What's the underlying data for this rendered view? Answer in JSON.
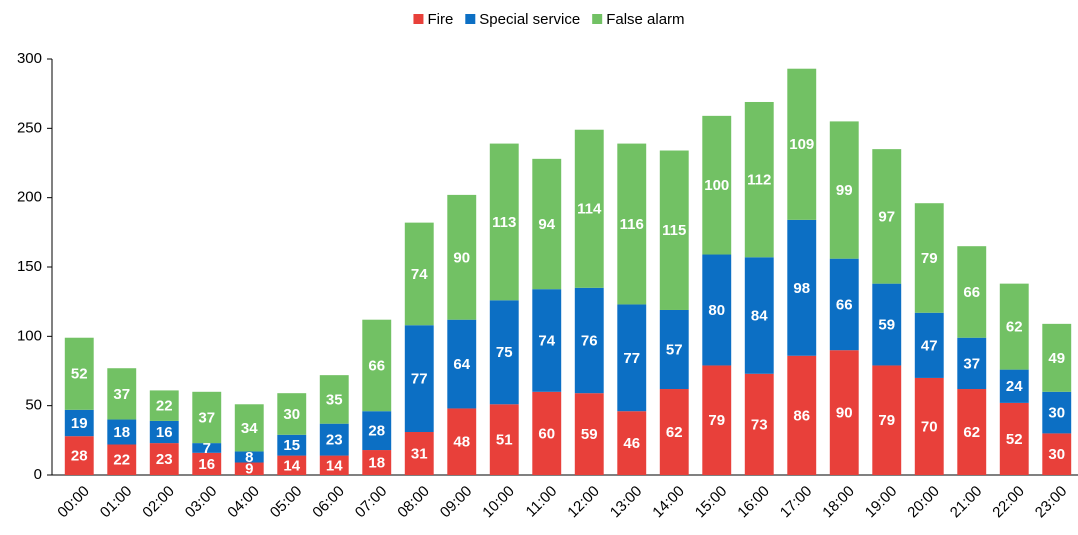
{
  "chart_data": {
    "type": "stacked_bar",
    "categories": [
      "00:00",
      "01:00",
      "02:00",
      "03:00",
      "04:00",
      "05:00",
      "06:00",
      "07:00",
      "08:00",
      "09:00",
      "10:00",
      "11:00",
      "12:00",
      "13:00",
      "14:00",
      "15:00",
      "16:00",
      "17:00",
      "18:00",
      "19:00",
      "20:00",
      "21:00",
      "22:00",
      "23:00"
    ],
    "series": [
      {
        "name": "Fire",
        "color": "#e8403a",
        "values": [
          28,
          22,
          23,
          16,
          9,
          14,
          14,
          18,
          31,
          48,
          51,
          60,
          59,
          46,
          62,
          79,
          73,
          86,
          90,
          79,
          70,
          62,
          52,
          30
        ]
      },
      {
        "name": "Special service",
        "color": "#0c6fc4",
        "values": [
          19,
          18,
          16,
          7,
          8,
          15,
          23,
          28,
          77,
          64,
          75,
          74,
          76,
          77,
          57,
          80,
          84,
          98,
          66,
          59,
          47,
          37,
          24,
          30
        ]
      },
      {
        "name": "False alarm",
        "color": "#72c164",
        "values": [
          52,
          37,
          22,
          37,
          34,
          30,
          35,
          66,
          74,
          90,
          113,
          94,
          114,
          116,
          115,
          100,
          112,
          109,
          99,
          97,
          79,
          66,
          62,
          49
        ]
      }
    ],
    "ylim": [
      0,
      300
    ],
    "yticks": [
      0,
      50,
      100,
      150,
      200,
      250,
      300
    ],
    "grid": false,
    "legend": "top"
  }
}
